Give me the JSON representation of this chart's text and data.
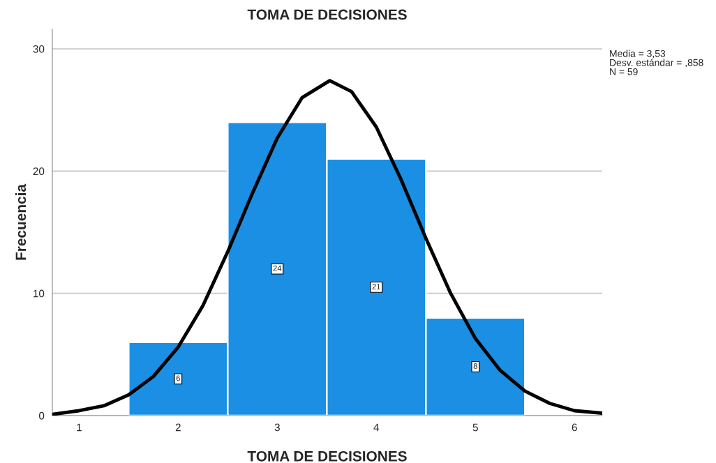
{
  "chart_data": {
    "type": "histogram",
    "title": "TOMA DE DECISIONES",
    "xlabel": "TOMA DE DECISIONES",
    "ylabel": "Frecuencia",
    "series": [
      {
        "bins": [
          1.5,
          2.5,
          3.5,
          4.5,
          5.5
        ],
        "values": [
          6,
          24,
          21,
          8
        ],
        "value_labels": [
          "6",
          "24",
          "21",
          "8"
        ],
        "color": "#1a8fe3"
      },
      {
        "type": "line",
        "color": "#000000",
        "x": [
          0.73,
          1.0,
          1.25,
          1.5,
          1.75,
          2.0,
          2.25,
          2.5,
          2.75,
          3.0,
          3.25,
          3.53,
          3.75,
          4.0,
          4.25,
          4.5,
          4.75,
          5.0,
          5.25,
          5.5,
          5.75,
          6.0,
          6.28
        ],
        "values": [
          0.1,
          0.4,
          0.8,
          1.7,
          3.2,
          5.6,
          9.0,
          13.4,
          18.2,
          22.7,
          26.0,
          27.4,
          26.5,
          23.6,
          19.3,
          14.5,
          10.0,
          6.3,
          3.7,
          2.0,
          1.0,
          0.4,
          0.2
        ]
      }
    ],
    "xlim": [
      0.73,
      6.28
    ],
    "xticks": [
      1,
      2,
      3,
      4,
      5,
      6
    ],
    "ylim": [
      0,
      31.6
    ],
    "yticks": [
      0,
      10,
      20,
      30
    ],
    "grid": "y",
    "annotations": [
      "Media = 3,53",
      "Desv. estándar = ,858",
      "N = 59"
    ]
  }
}
